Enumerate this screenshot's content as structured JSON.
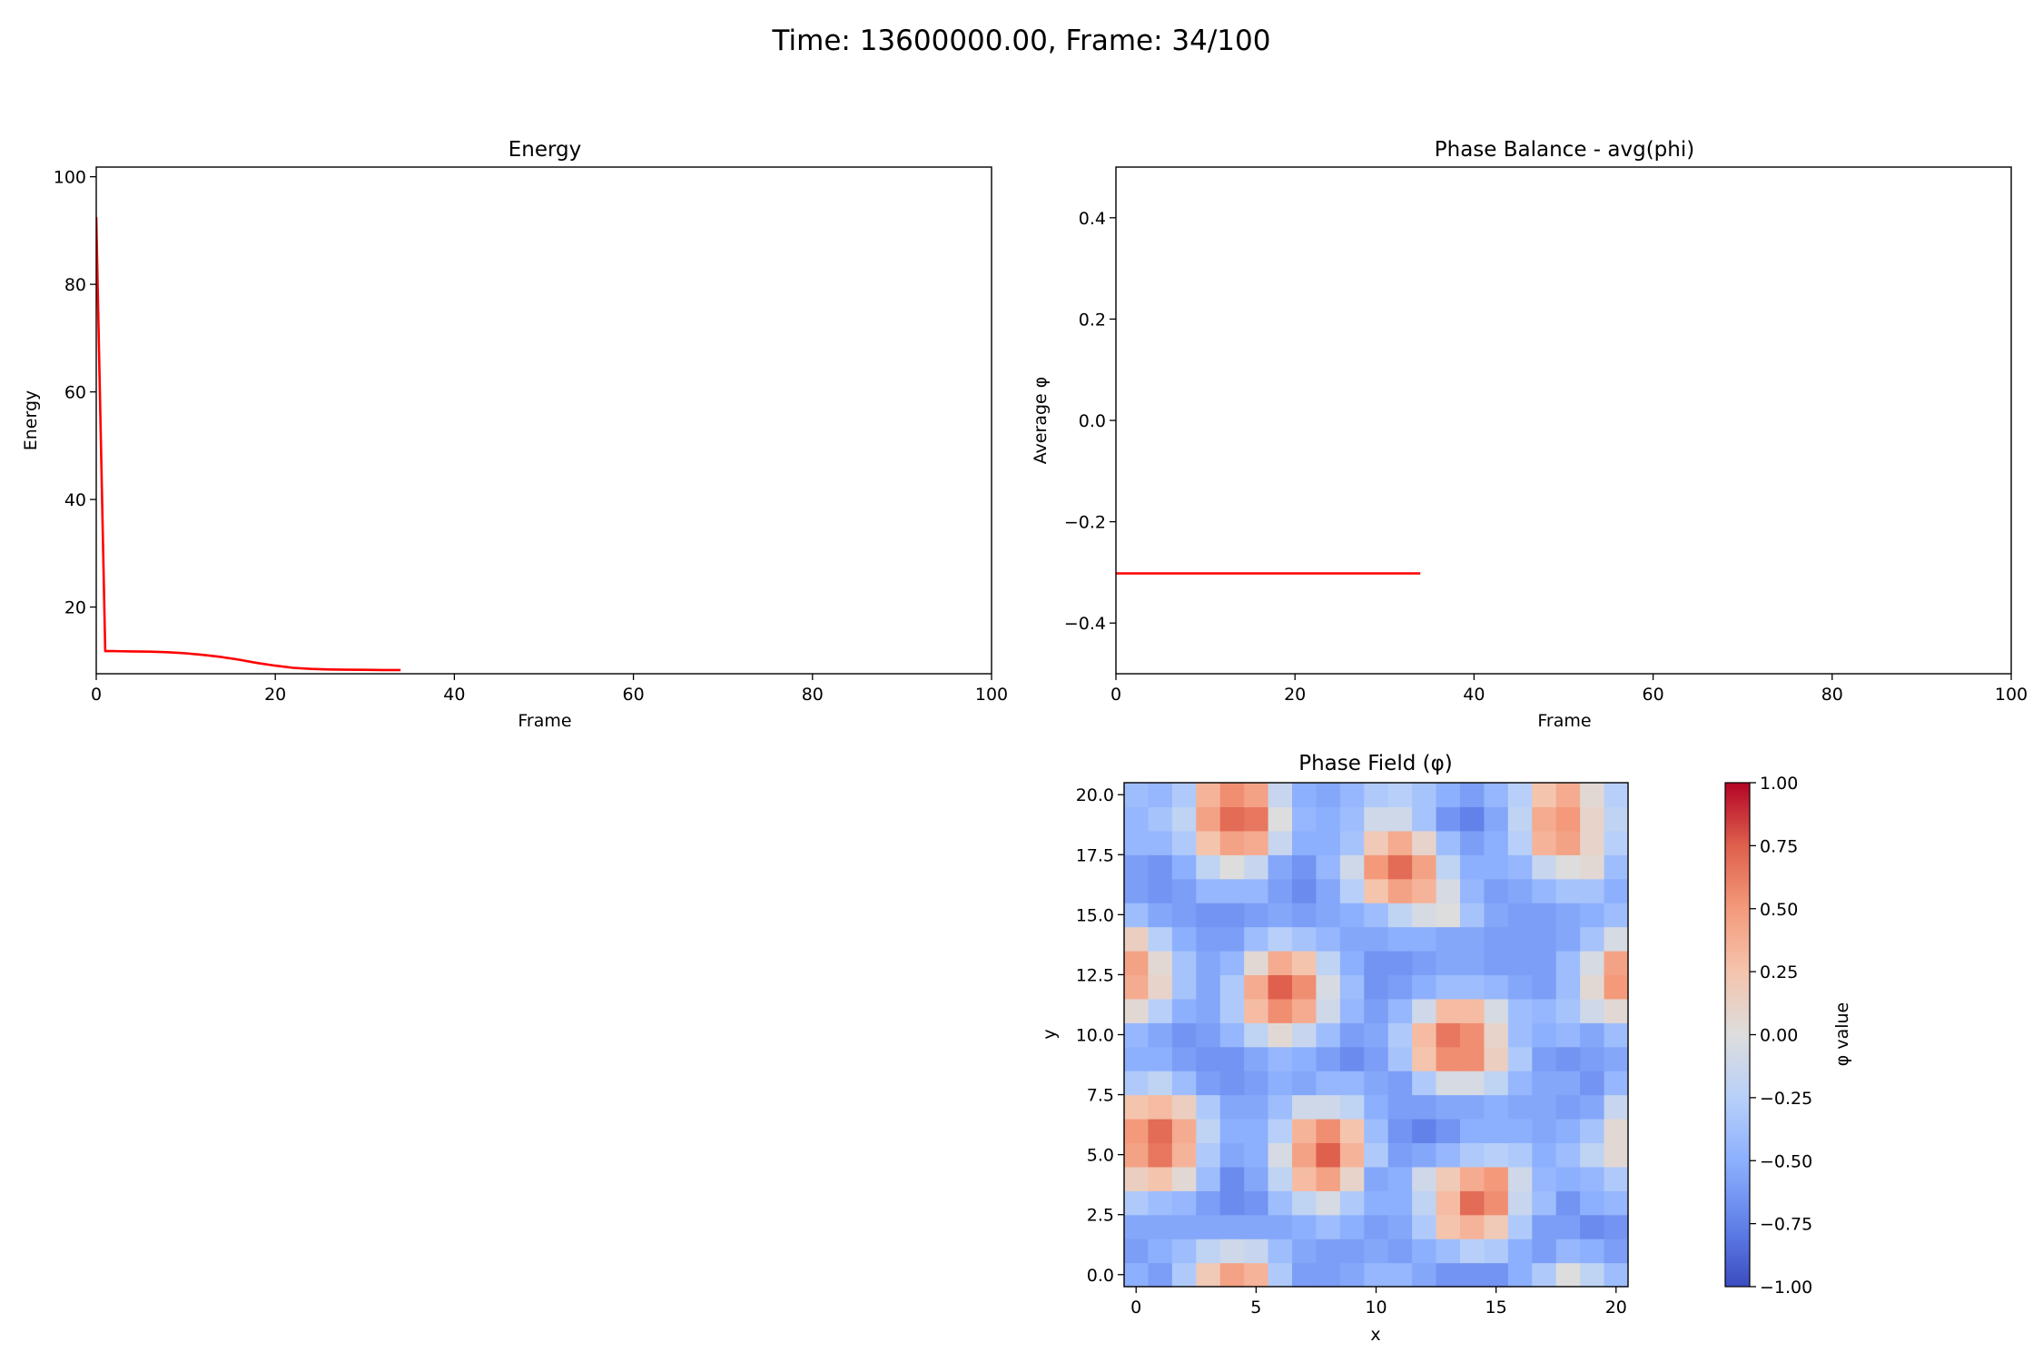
{
  "figure": {
    "suptitle": "Time: 13600000.00, Frame: 34/100",
    "colors": {
      "line": "#ff0000",
      "axes": "#000000",
      "background": "#ffffff"
    }
  },
  "chart_data": [
    {
      "id": "energy",
      "type": "line",
      "title": "Energy",
      "xlabel": "Frame",
      "ylabel": "Energy",
      "xlim": [
        0,
        100
      ],
      "ylim": [
        7.6,
        101.8
      ],
      "xticks": [
        0,
        20,
        40,
        60,
        80,
        100
      ],
      "yticks": [
        20,
        40,
        60,
        80,
        100
      ],
      "grid": false,
      "series": [
        {
          "color": "#ff0000",
          "x": [
            0,
            1,
            2,
            4,
            6,
            8,
            10,
            12,
            14,
            16,
            18,
            20,
            22,
            24,
            26,
            28,
            30,
            32,
            34
          ],
          "y": [
            92.5,
            11.8,
            11.8,
            11.75,
            11.7,
            11.6,
            11.4,
            11.1,
            10.7,
            10.2,
            9.6,
            9.1,
            8.7,
            8.5,
            8.4,
            8.35,
            8.32,
            8.3,
            8.3
          ]
        }
      ]
    },
    {
      "id": "phase-balance",
      "type": "line",
      "title": "Phase Balance - avg(phi)",
      "xlabel": "Frame",
      "ylabel": "Average φ",
      "xlim": [
        0,
        100
      ],
      "ylim": [
        -0.5,
        0.5
      ],
      "xticks": [
        0,
        20,
        40,
        60,
        80,
        100
      ],
      "yticks": [
        -0.4,
        -0.2,
        0.0,
        0.2,
        0.4
      ],
      "ytick_labels": [
        "−0.4",
        "−0.2",
        "0.0",
        "0.2",
        "0.4"
      ],
      "grid": false,
      "series": [
        {
          "color": "#ff0000",
          "x": [
            0,
            34
          ],
          "y": [
            -0.302,
            -0.302
          ]
        }
      ]
    },
    {
      "id": "phase-field",
      "type": "heatmap",
      "title": "Phase Field (φ)",
      "xlabel": "x",
      "ylabel": "y",
      "colorbar_label": "φ value",
      "colormap": "coolwarm",
      "vmin": -1.0,
      "vmax": 1.0,
      "xlim": [
        -0.5,
        20.5
      ],
      "ylim": [
        -0.5,
        20.5
      ],
      "xticks": [
        0,
        5,
        10,
        15,
        20
      ],
      "yticks": [
        0.0,
        2.5,
        5.0,
        7.5,
        10.0,
        12.5,
        15.0,
        17.5,
        20.0
      ],
      "ytick_labels": [
        "0.0",
        "2.5",
        "5.0",
        "7.5",
        "10.0",
        "12.5",
        "15.0",
        "17.5",
        "20.0"
      ],
      "colorbar_ticks": [
        -1.0,
        -0.75,
        -0.5,
        -0.25,
        0.0,
        0.25,
        0.5,
        0.75,
        1.0
      ],
      "colorbar_tick_labels": [
        "−1.00",
        "−0.75",
        "−0.50",
        "−0.25",
        "0.00",
        "0.25",
        "0.50",
        "0.75",
        "1.00"
      ],
      "description_rows": "grid[i] is row y = i (bottom to top), 21 values per row for x = 0..20",
      "grid": [
        [
          -0.5,
          -0.6,
          -0.3,
          0.2,
          0.45,
          0.35,
          -0.3,
          -0.6,
          -0.6,
          -0.55,
          -0.45,
          -0.45,
          -0.55,
          -0.65,
          -0.65,
          -0.65,
          -0.5,
          -0.3,
          0.0,
          -0.2,
          -0.4
        ],
        [
          -0.6,
          -0.5,
          -0.4,
          -0.2,
          -0.1,
          -0.15,
          -0.4,
          -0.55,
          -0.6,
          -0.6,
          -0.55,
          -0.6,
          -0.5,
          -0.4,
          -0.25,
          -0.3,
          -0.5,
          -0.6,
          -0.45,
          -0.5,
          -0.6
        ],
        [
          -0.55,
          -0.55,
          -0.55,
          -0.55,
          -0.55,
          -0.55,
          -0.55,
          -0.5,
          -0.4,
          -0.5,
          -0.6,
          -0.55,
          -0.3,
          0.25,
          0.35,
          0.2,
          -0.3,
          -0.6,
          -0.6,
          -0.7,
          -0.65
        ],
        [
          -0.3,
          -0.4,
          -0.45,
          -0.6,
          -0.7,
          -0.65,
          -0.4,
          -0.2,
          -0.05,
          -0.3,
          -0.5,
          -0.5,
          -0.2,
          0.3,
          0.7,
          0.55,
          -0.15,
          -0.4,
          -0.65,
          -0.5,
          -0.45
        ],
        [
          0.15,
          0.25,
          0.05,
          -0.4,
          -0.7,
          -0.55,
          -0.2,
          0.3,
          0.45,
          0.1,
          -0.55,
          -0.5,
          -0.1,
          0.2,
          0.4,
          0.5,
          -0.1,
          -0.45,
          -0.5,
          -0.45,
          -0.3
        ],
        [
          0.45,
          0.65,
          0.35,
          -0.3,
          -0.55,
          -0.5,
          -0.05,
          0.45,
          0.75,
          0.35,
          -0.3,
          -0.6,
          -0.55,
          -0.45,
          -0.3,
          -0.25,
          -0.3,
          -0.5,
          -0.4,
          -0.2,
          0.05
        ],
        [
          0.5,
          0.7,
          0.4,
          -0.2,
          -0.5,
          -0.5,
          -0.25,
          0.35,
          0.55,
          0.25,
          -0.4,
          -0.65,
          -0.75,
          -0.65,
          -0.5,
          -0.5,
          -0.5,
          -0.55,
          -0.5,
          -0.35,
          0.05
        ],
        [
          0.25,
          0.3,
          0.15,
          -0.3,
          -0.55,
          -0.55,
          -0.4,
          -0.1,
          -0.1,
          -0.2,
          -0.5,
          -0.6,
          -0.6,
          -0.55,
          -0.55,
          -0.5,
          -0.55,
          -0.55,
          -0.6,
          -0.55,
          -0.15
        ],
        [
          -0.3,
          -0.2,
          -0.4,
          -0.6,
          -0.65,
          -0.6,
          -0.5,
          -0.55,
          -0.45,
          -0.45,
          -0.55,
          -0.6,
          -0.3,
          -0.05,
          -0.05,
          -0.2,
          -0.45,
          -0.55,
          -0.55,
          -0.65,
          -0.45
        ],
        [
          -0.5,
          -0.5,
          -0.6,
          -0.65,
          -0.65,
          -0.55,
          -0.45,
          -0.5,
          -0.6,
          -0.7,
          -0.6,
          -0.35,
          0.25,
          0.55,
          0.55,
          0.15,
          -0.3,
          -0.6,
          -0.65,
          -0.6,
          -0.55
        ],
        [
          -0.45,
          -0.55,
          -0.65,
          -0.6,
          -0.45,
          -0.2,
          0.05,
          -0.15,
          -0.4,
          -0.6,
          -0.55,
          -0.3,
          0.3,
          0.65,
          0.55,
          0.1,
          -0.4,
          -0.5,
          -0.45,
          -0.55,
          -0.4
        ],
        [
          0.05,
          -0.25,
          -0.5,
          -0.55,
          -0.3,
          0.3,
          0.55,
          0.4,
          -0.1,
          -0.45,
          -0.6,
          -0.45,
          -0.1,
          0.3,
          0.3,
          -0.05,
          -0.4,
          -0.45,
          -0.35,
          -0.1,
          0.05
        ],
        [
          0.4,
          0.1,
          -0.35,
          -0.55,
          -0.3,
          0.4,
          0.75,
          0.55,
          -0.05,
          -0.4,
          -0.65,
          -0.6,
          -0.5,
          -0.4,
          -0.4,
          -0.45,
          -0.55,
          -0.6,
          -0.4,
          0.05,
          0.5
        ],
        [
          0.45,
          0.05,
          -0.35,
          -0.55,
          -0.45,
          0.05,
          0.4,
          0.25,
          -0.2,
          -0.5,
          -0.65,
          -0.65,
          -0.6,
          -0.55,
          -0.55,
          -0.6,
          -0.6,
          -0.6,
          -0.4,
          -0.05,
          0.45
        ],
        [
          0.15,
          -0.25,
          -0.5,
          -0.6,
          -0.6,
          -0.4,
          -0.25,
          -0.35,
          -0.45,
          -0.55,
          -0.55,
          -0.5,
          -0.5,
          -0.55,
          -0.55,
          -0.6,
          -0.6,
          -0.6,
          -0.55,
          -0.35,
          -0.05
        ],
        [
          -0.4,
          -0.55,
          -0.6,
          -0.65,
          -0.65,
          -0.6,
          -0.55,
          -0.6,
          -0.55,
          -0.5,
          -0.4,
          -0.2,
          -0.05,
          0.0,
          -0.35,
          -0.55,
          -0.6,
          -0.6,
          -0.55,
          -0.5,
          -0.4
        ],
        [
          -0.6,
          -0.65,
          -0.6,
          -0.45,
          -0.45,
          -0.45,
          -0.6,
          -0.7,
          -0.55,
          -0.25,
          0.25,
          0.45,
          0.35,
          -0.05,
          -0.45,
          -0.6,
          -0.55,
          -0.45,
          -0.35,
          -0.35,
          -0.5
        ],
        [
          -0.6,
          -0.65,
          -0.5,
          -0.2,
          0.0,
          -0.15,
          -0.55,
          -0.65,
          -0.45,
          -0.1,
          0.5,
          0.7,
          0.45,
          -0.2,
          -0.5,
          -0.5,
          -0.45,
          -0.15,
          0.0,
          0.05,
          -0.4
        ],
        [
          -0.45,
          -0.45,
          -0.3,
          0.25,
          0.45,
          0.4,
          -0.15,
          -0.5,
          -0.5,
          -0.35,
          0.2,
          0.4,
          0.1,
          -0.4,
          -0.6,
          -0.5,
          -0.25,
          0.35,
          0.45,
          0.1,
          -0.25
        ],
        [
          -0.45,
          -0.35,
          -0.2,
          0.45,
          0.7,
          0.65,
          0.0,
          -0.45,
          -0.5,
          -0.4,
          -0.1,
          -0.1,
          -0.35,
          -0.65,
          -0.75,
          -0.55,
          -0.2,
          0.4,
          0.5,
          0.1,
          -0.2
        ],
        [
          -0.4,
          -0.45,
          -0.3,
          0.35,
          0.55,
          0.45,
          -0.15,
          -0.5,
          -0.55,
          -0.45,
          -0.3,
          -0.25,
          -0.35,
          -0.5,
          -0.6,
          -0.45,
          -0.25,
          0.25,
          0.4,
          0.05,
          -0.25
        ]
      ]
    }
  ]
}
